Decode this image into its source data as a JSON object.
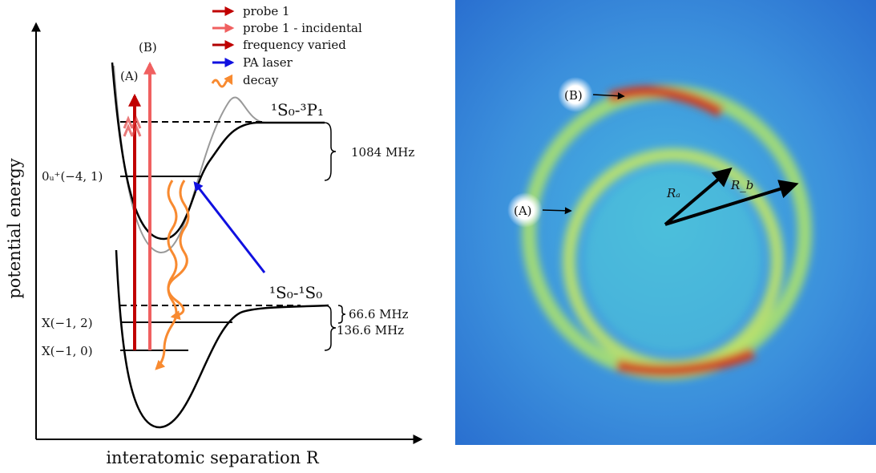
{
  "left_panel": {
    "axis_labels": {
      "y": "potential energy",
      "x": "interatomic separation R"
    },
    "legend": [
      "probe 1",
      "probe 1 - incidental",
      "frequency varied",
      "PA laser",
      "decay"
    ],
    "transition_labels": [
      "(A)",
      "(B)"
    ],
    "asymptotes": [
      "¹S₀-³P₁",
      "¹S₀-¹S₀"
    ],
    "levels": [
      "0ᵤ⁺(−4, 1)",
      "X(−1, 2)",
      "X(−1, 0)"
    ],
    "splittings": [
      "1084 MHz",
      "66.6 MHz",
      "136.6 MHz"
    ]
  },
  "right_panel": {
    "ring_labels": [
      "(B)",
      "(A)"
    ],
    "radii": [
      "Rₐ",
      "R_b"
    ]
  }
}
